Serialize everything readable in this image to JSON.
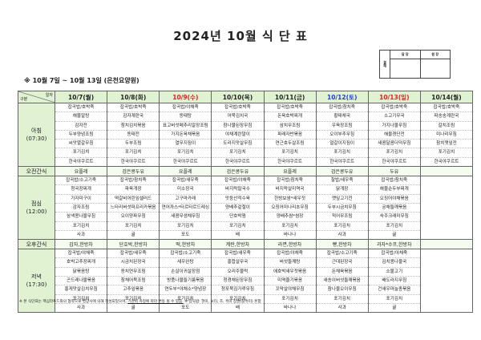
{
  "title": "2024년 10월 식 단 표",
  "approval": {
    "label": "결재",
    "col1": "담 당",
    "col2": "원 장"
  },
  "subtitle": "※ 10월 7일 ~ 10월 13일 (은천요양원)",
  "corner": {
    "top": "일자",
    "bottom": "구분"
  },
  "colors": {
    "header_bg": "#e1f2d3",
    "red": "#e02020",
    "blue": "#1f3fd0"
  },
  "days": [
    {
      "label": "10/7(월)",
      "color": "#222222"
    },
    {
      "label": "10/8(화)",
      "color": "#222222"
    },
    {
      "label": "10/9(수)",
      "color": "#e02020"
    },
    {
      "label": "10/10(목)",
      "color": "#222222"
    },
    {
      "label": "10/11(금)",
      "color": "#222222"
    },
    {
      "label": "10/12(토)",
      "color": "#1f3fd0"
    },
    {
      "label": "10/13(일)",
      "color": "#e02020"
    },
    {
      "label": "10/14(월)",
      "color": "#222222"
    }
  ],
  "rows": [
    {
      "type": "meal",
      "label": "아침",
      "time": "(07:30)",
      "cells": [
        [
          "잡곡밥/호박죽",
          "해물알탕",
          "감자전",
          "두부양념조림",
          "씨앗멸갈무침",
          "포기김치",
          "한국야쿠르트"
        ],
        [
          "잡곡밥/호박죽",
          "감자계란국",
          "참치김치볶음",
          "동태전",
          "두부조림",
          "포기김치",
          "한국야쿠르트"
        ],
        [
          "잡곡밥/야채죽",
          "동태탕",
          "표고버섯메추리알장조림",
          "가지돈육채볶음",
          "열무지짐이",
          "포기김치",
          "한국야쿠르트"
        ],
        [
          "잡곡밥/호박죽",
          "어묵김치국",
          "참나물된장무침",
          "야채계란말이",
          "도라지맛살무침",
          "포기김치",
          "한국야쿠르트"
        ],
        [
          "잡곡밥/호박죽",
          "돈육호박찌개",
          "삼치무조림",
          "파래자반볶음",
          "연근호두살조림",
          "포기김치",
          "한국야쿠르트"
        ],
        [
          "잡곡밥/참치죽",
          "황태채국",
          "우육장조림",
          "오이부추무침",
          "얼갈이지짐이",
          "포기김치",
          "한국야쿠르트"
        ],
        [
          "잡곡밥/호박죽",
          "소고기무국",
          "가지나물무침",
          "해물경단전",
          "새콤달콤더덕무침",
          "포기김치",
          "한국야쿠르트"
        ],
        [
          "잡곡밥/호박죽",
          "파송송계란국",
          "갈치조림",
          "미나리무침",
          "참치깻잎전",
          "포기김치",
          "한국야쿠르트"
        ]
      ]
    },
    {
      "type": "snack",
      "label": "오전간식",
      "cells": [
        "요플레",
        "검은콩두유",
        "요플레",
        "검은콩두유",
        "요플레",
        "검은콩두유",
        "두유",
        ""
      ]
    },
    {
      "type": "meal",
      "label": "점심",
      "time": "(12:00)",
      "cells": [
        [
          "잡곡밥/소고기죽",
          "청국장찌개",
          "가자미구이",
          "감자조림",
          "삼색콩나물무침",
          "포기김치",
          "사과"
        ],
        [
          "잡곡밥/참치죽",
          "파육개장",
          "떡갈비어린잎샐러드",
          "느타리버섯파프리카볶음",
          "오이양파무침",
          "포기김치",
          "귤"
        ],
        [
          "잡곡밥/새우죽",
          "미소장국",
          "고구마카레",
          "연어까스*타르타르드레싱",
          "새콤무생채무침",
          "포기김치",
          "포도"
        ],
        [
          "잡곡밥/야채죽",
          "바지락칼국수",
          "맛둥산적수육",
          "양배추겉절이",
          "단호박찜",
          "포기김치",
          "배"
        ],
        [
          "잡곡밥/참치죽",
          "바지락살미역국",
          "한방보쌈*새우젓",
          "오징어미나리초무침",
          "양배추쌈*쌈장",
          "포기김치",
          "바나나"
        ],
        [
          "찰밥/새우죽",
          "닭개장",
          "깻잎고기전",
          "두부시금치무침",
          "적어무조림",
          "포기김치",
          "사과"
        ],
        [
          "잡곡밥/참치죽",
          "해물순두부찌개",
          "오징어야채볶음",
          "궁채들깨볶음",
          "숙주크래미무침",
          "포기김치",
          "귤"
        ],
        []
      ]
    },
    {
      "type": "snack",
      "label": "오후간식",
      "cells": [
        "감자,한방차",
        "단호박,한방차",
        "떡,한방차",
        "계란,한방차",
        "라면,한방차",
        "빵,한방차",
        "과자*수프,한방차",
        ""
      ]
    },
    {
      "type": "meal",
      "label": "저녁",
      "time": "(17:30)",
      "cells": [
        [
          "잡곡밥/야채죽",
          "호박고추장찌개",
          "닭볶음탕",
          "곤드레나물볶음",
          "홍게맛살김치무침",
          "포기김치",
          "사과"
        ],
        [
          "잡곡밥/새우죽",
          "시금치된장국",
          "동치연무조림",
          "참채어묵조림",
          "고추잎볶음",
          "포기김치",
          "귤"
        ],
        [
          "잡곡밥/소고기죽",
          "새우완탕",
          "손살이귀살장점",
          "방풍나물들기름볶음",
          "연두부*야채소*양념장",
          "포기김치",
          "포도"
        ],
        [
          "잡곡밥/새우죽",
          "홍합살무국",
          "오리주물럭",
          "청경채된장무침",
          "청포묵김가루무침",
          "포기김치",
          "배"
        ],
        [
          "잡곡밥/야채죽",
          "버섯들깨탕",
          "애호박새우젓볶음",
          "미역줄기볶음",
          "꼬막살야채무침",
          "포기김치",
          "바나나"
        ],
        [
          "잡곡밥/소고기죽",
          "근대된장국",
          "돈채육볶음",
          "새송이버섯들깨볶음",
          "참나물오이무침",
          "포기김치",
          "사과"
        ],
        [
          "잡곡밥/야채죽",
          "김치콩나물국",
          "소불고기",
          "배도라지무침",
          "건새우마늘종볶음",
          "포기김치",
          "귤"
        ],
        []
      ]
    }
  ],
  "footnote": {
    "part1": "※ 본 식단표는 핵심라푸드와의 협약으로 영양사에 의해 작성되었으며, ",
    "part2": "기관의 사정에 따라 변동 될 수 있음.",
    "part3": " ※ 잡곡밥: 현미, 보리, 조, 흑미 찹쌀(찰흑미) 혼합"
  }
}
